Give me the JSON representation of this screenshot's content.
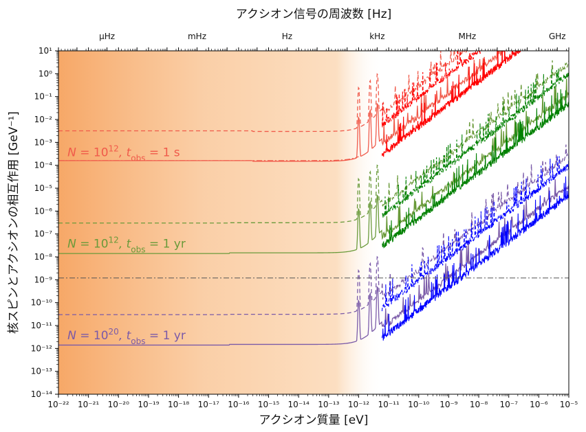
{
  "chart_data": {
    "type": "line",
    "title": "アクシオン信号の周波数 [Hz]",
    "xlabel": "アクシオン質量 [eV]",
    "ylabel": "核スピンとアクシオンの相互作用 [GeV⁻¹]",
    "xscale": "log",
    "yscale": "log",
    "xlim": [
      1e-22,
      1e-05
    ],
    "ylim": [
      1e-14,
      10
    ],
    "xticks": [
      "10⁻²²",
      "10⁻²¹",
      "10⁻²⁰",
      "10⁻¹⁹",
      "10⁻¹⁸",
      "10⁻¹⁷",
      "10⁻¹⁶",
      "10⁻¹⁵",
      "10⁻¹⁴",
      "10⁻¹³",
      "10⁻¹²",
      "10⁻¹¹",
      "10⁻¹⁰",
      "10⁻⁹",
      "10⁻⁸",
      "10⁻⁷",
      "10⁻⁶",
      "10⁻⁵"
    ],
    "yticks": [
      "10⁻¹⁴",
      "10⁻¹³",
      "10⁻¹²",
      "10⁻¹¹",
      "10⁻¹⁰",
      "10⁻⁹",
      "10⁻⁸",
      "10⁻⁷",
      "10⁻⁶",
      "10⁻⁵",
      "10⁻⁴",
      "10⁻³",
      "10⁻²",
      "10⁻¹",
      "10⁰",
      "10¹"
    ],
    "top_axis": {
      "labels": [
        "μHz",
        "mHz",
        "Hz",
        "kHz",
        "MHz",
        "GHz"
      ],
      "frequencies_hz": [
        1e-06,
        0.001,
        1,
        1000.0,
        1000000.0,
        1000000000.0
      ]
    },
    "shaded_region": {
      "x_range": [
        1e-22,
        6e-12
      ],
      "color": "#f5a05a"
    },
    "reference_line": {
      "y": 1.2e-09,
      "style": "dashdot",
      "color": "#555555"
    },
    "annotations": [
      {
        "text": "N = 10¹², t_obs = 1 s",
        "parts": [
          "N",
          " = 10",
          "12",
          ", t",
          "obs",
          " = 1 s"
        ],
        "color": "#f05a4a",
        "anchor": [
          2e-22,
          0.00025
        ]
      },
      {
        "text": "N = 10¹², t_obs = 1 yr",
        "parts": [
          "N",
          " = 10",
          "12",
          ", t",
          "obs",
          " = 1 yr"
        ],
        "color": "#6a9a3a",
        "anchor": [
          2e-22,
          2.5e-08
        ]
      },
      {
        "text": "N = 10²⁰, t_obs = 1 yr",
        "parts": [
          "N",
          " = 10",
          "20",
          ", t",
          "obs",
          " = 1 yr"
        ],
        "color": "#7a5aa8",
        "anchor": [
          2e-22,
          2.5e-12
        ]
      }
    ],
    "series": [
      {
        "color": "#f05a4a",
        "dash": "solid",
        "low_mass_value": 0.00016,
        "shifted_value": 0.00015,
        "shift_at": 3e-16,
        "resonances": [
          1e-12,
          2.4e-12,
          4.2e-12
        ],
        "slope": 1
      },
      {
        "color": "#f05a4a",
        "dash": "dashed",
        "low_mass_value": 0.0032,
        "shifted_value": 0.003,
        "shift_at": 3e-16,
        "resonances": [
          1e-12,
          2.4e-12,
          4.2e-12
        ],
        "slope": 1
      },
      {
        "color": "#f05a4a",
        "dash": "dashdot",
        "low_mass_value": 0.00016,
        "shifted_value": 0.00016,
        "shift_at": 3e-16,
        "resonances": [],
        "slope": 0,
        "end": 1e-12
      },
      {
        "color": "#6a9a3a",
        "dash": "solid",
        "low_mass_value": 1.4e-08,
        "shifted_value": 1.5e-08,
        "shift_at": 5e-17,
        "resonances": [
          1e-12,
          2.4e-12,
          4.2e-12
        ],
        "slope": 1
      },
      {
        "color": "#6a9a3a",
        "dash": "dashed",
        "low_mass_value": 3e-07,
        "shifted_value": 3.1e-07,
        "shift_at": 5e-17,
        "resonances": [
          1e-12,
          2.4e-12,
          4.2e-12
        ],
        "slope": 1
      },
      {
        "color": "#7a5aa8",
        "dash": "solid",
        "low_mass_value": 1.4e-12,
        "shifted_value": 1.5e-12,
        "shift_at": 5e-17,
        "resonances": [
          1e-12,
          2.4e-12,
          4.2e-12
        ],
        "slope": 1
      },
      {
        "color": "#7a5aa8",
        "dash": "dashed",
        "low_mass_value": 3e-11,
        "shifted_value": 3.1e-11,
        "shift_at": 5e-17,
        "resonances": [
          1e-12,
          2.4e-12,
          4.2e-12
        ],
        "slope": 1
      }
    ],
    "high_mass_colors": [
      "#ff0000",
      "#008000",
      "#0000ff"
    ]
  }
}
